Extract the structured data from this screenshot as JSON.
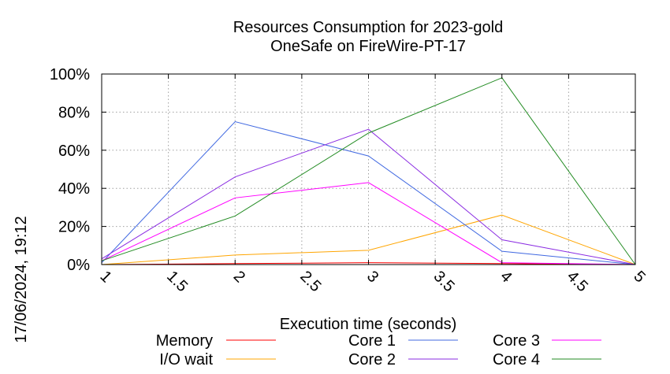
{
  "title_line1": "Resources Consumption for 2023-gold",
  "title_line2": "OneSafe on FireWire-PT-17",
  "timestamp": "17/06/2024, 19:12",
  "chart_data": {
    "type": "line",
    "title": "Resources Consumption for 2023-gold OneSafe on FireWire-PT-17",
    "xlabel": "Execution time (seconds)",
    "ylabel": "",
    "xlim": [
      1,
      5
    ],
    "ylim": [
      0,
      100
    ],
    "x_ticks": [
      "1",
      "1.5",
      "2",
      "2.5",
      "3",
      "3.5",
      "4",
      "4.5",
      "5"
    ],
    "y_ticks": [
      "0%",
      "20%",
      "40%",
      "60%",
      "80%",
      "100%"
    ],
    "grid": true,
    "legend_position": "bottom",
    "series": [
      {
        "name": "Memory",
        "color": "#ff0000",
        "x": [
          1,
          2,
          3,
          4,
          5
        ],
        "y": [
          0,
          0.5,
          1,
          0.5,
          0
        ]
      },
      {
        "name": "I/O wait",
        "color": "#ffa500",
        "x": [
          1,
          2,
          3,
          4,
          5
        ],
        "y": [
          0,
          5,
          7.5,
          26,
          0
        ]
      },
      {
        "name": "Core 1",
        "color": "#4169e1",
        "x": [
          1,
          2,
          3,
          4,
          5
        ],
        "y": [
          1,
          75,
          57,
          7,
          0
        ]
      },
      {
        "name": "Core 2",
        "color": "#8a2be2",
        "x": [
          1,
          2,
          3,
          4,
          5
        ],
        "y": [
          3,
          46,
          71,
          13,
          0
        ]
      },
      {
        "name": "Core 3",
        "color": "#ff00ff",
        "x": [
          1,
          2,
          3,
          4,
          5
        ],
        "y": [
          2,
          35,
          43,
          1,
          0
        ]
      },
      {
        "name": "Core 4",
        "color": "#228b22",
        "x": [
          1,
          2,
          3,
          4,
          5
        ],
        "y": [
          2,
          25.5,
          69,
          98,
          0
        ]
      }
    ]
  }
}
